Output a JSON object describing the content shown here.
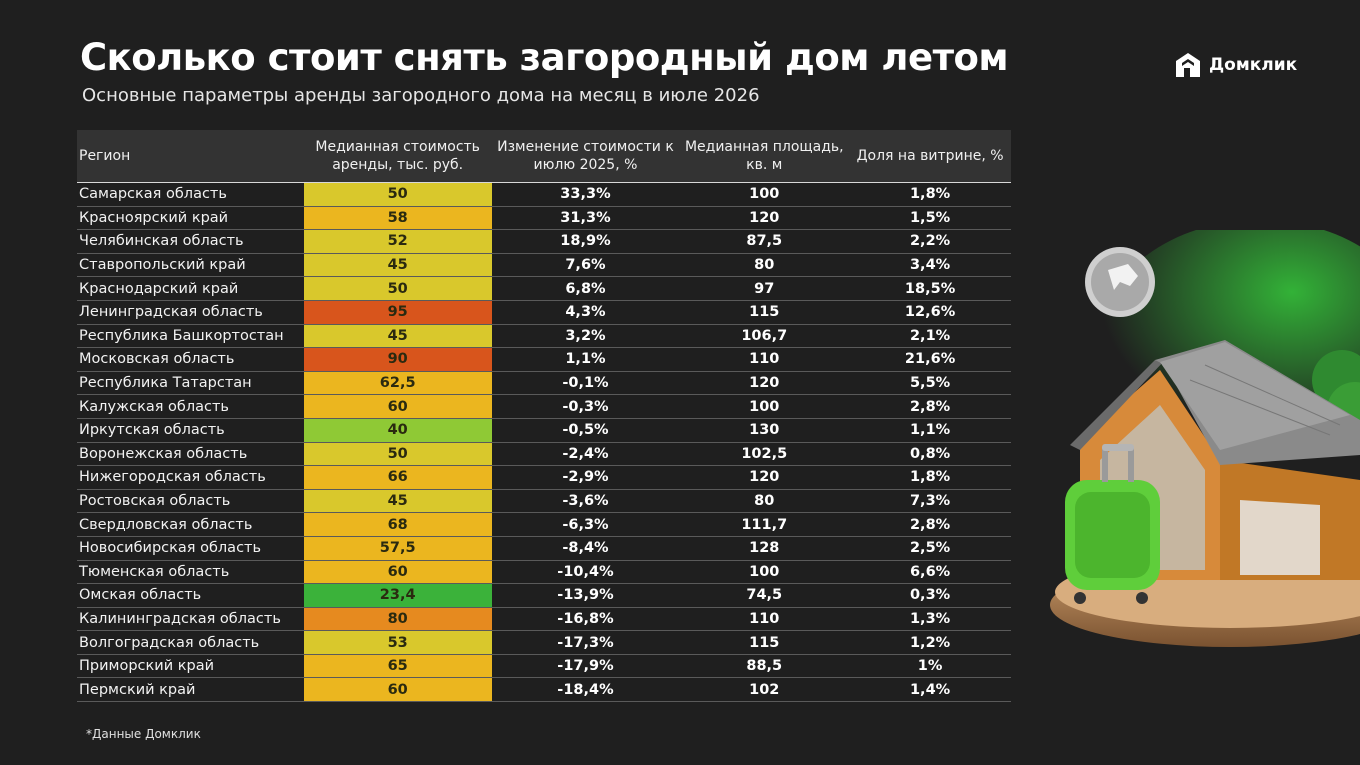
{
  "header": {
    "title": "Сколько стоит снять загородный дом летом",
    "subtitle": "Основные параметры аренды загородного дома на месяц в июле 2026"
  },
  "brand": {
    "name": "Домклик"
  },
  "footnote": "*Данные Домклик",
  "colors": {
    "background": "#1f1f1f",
    "green": "#3bb23a",
    "light_green": "#8fc935",
    "yellow": "#d9c82c",
    "amber": "#ebb61f",
    "orange": "#e68a1f",
    "red_orange": "#d8551c"
  },
  "chart_data": {
    "type": "table",
    "columns": [
      "Регион",
      "Медианная стоимость аренды, тыс. руб.",
      "Изменение стоимости к июлю 2025, %",
      "Медианная площадь, кв. м",
      "Доля на витрине, %"
    ],
    "rows": [
      {
        "region": "Самарская область",
        "rent": "50",
        "change": "33,3%",
        "area": "100",
        "share": "1,8%",
        "rent_value": 50
      },
      {
        "region": "Красноярский край",
        "rent": "58",
        "change": "31,3%",
        "area": "120",
        "share": "1,5%",
        "rent_value": 58
      },
      {
        "region": "Челябинская область",
        "rent": "52",
        "change": "18,9%",
        "area": "87,5",
        "share": "2,2%",
        "rent_value": 52
      },
      {
        "region": "Ставропольский край",
        "rent": "45",
        "change": "7,6%",
        "area": "80",
        "share": "3,4%",
        "rent_value": 45
      },
      {
        "region": "Краснодарский край",
        "rent": "50",
        "change": "6,8%",
        "area": "97",
        "share": "18,5%",
        "rent_value": 50
      },
      {
        "region": "Ленинградская область",
        "rent": "95",
        "change": "4,3%",
        "area": "115",
        "share": "12,6%",
        "rent_value": 95
      },
      {
        "region": "Республика Башкортостан",
        "rent": "45",
        "change": "3,2%",
        "area": "106,7",
        "share": "2,1%",
        "rent_value": 45
      },
      {
        "region": "Московская область",
        "rent": "90",
        "change": "1,1%",
        "area": "110",
        "share": "21,6%",
        "rent_value": 90
      },
      {
        "region": "Республика Татарстан",
        "rent": "62,5",
        "change": "-0,1%",
        "area": "120",
        "share": "5,5%",
        "rent_value": 62.5
      },
      {
        "region": "Калужская область",
        "rent": "60",
        "change": "-0,3%",
        "area": "100",
        "share": "2,8%",
        "rent_value": 60
      },
      {
        "region": "Иркутская область",
        "rent": "40",
        "change": "-0,5%",
        "area": "130",
        "share": "1,1%",
        "rent_value": 40
      },
      {
        "region": "Воронежская область",
        "rent": "50",
        "change": "-2,4%",
        "area": "102,5",
        "share": "0,8%",
        "rent_value": 50
      },
      {
        "region": "Нижегородская область",
        "rent": "66",
        "change": "-2,9%",
        "area": "120",
        "share": "1,8%",
        "rent_value": 66
      },
      {
        "region": "Ростовская область",
        "rent": "45",
        "change": "-3,6%",
        "area": "80",
        "share": "7,3%",
        "rent_value": 45
      },
      {
        "region": "Свердловская область",
        "rent": "68",
        "change": "-6,3%",
        "area": "111,7",
        "share": "2,8%",
        "rent_value": 68
      },
      {
        "region": "Новосибирская область",
        "rent": "57,5",
        "change": "-8,4%",
        "area": "128",
        "share": "2,5%",
        "rent_value": 57.5
      },
      {
        "region": "Тюменская область",
        "rent": "60",
        "change": "-10,4%",
        "area": "100",
        "share": "6,6%",
        "rent_value": 60
      },
      {
        "region": "Омская область",
        "rent": "23,4",
        "change": "-13,9%",
        "area": "74,5",
        "share": "0,3%",
        "rent_value": 23.4
      },
      {
        "region": "Калининградская область",
        "rent": "80",
        "change": "-16,8%",
        "area": "110",
        "share": "1,3%",
        "rent_value": 80
      },
      {
        "region": "Волгоградская область",
        "rent": "53",
        "change": "-17,3%",
        "area": "115",
        "share": "1,2%",
        "rent_value": 53
      },
      {
        "region": "Приморский край",
        "rent": "65",
        "change": "-17,9%",
        "area": "88,5",
        "share": "1%",
        "rent_value": 65
      },
      {
        "region": "Пермский край",
        "rent": "60",
        "change": "-18,4%",
        "area": "102",
        "share": "1,4%",
        "rent_value": 60
      }
    ]
  }
}
